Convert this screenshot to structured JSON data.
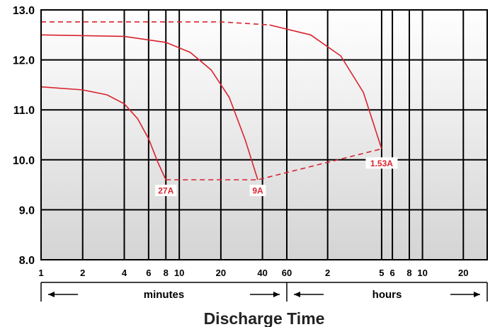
{
  "chart_data": {
    "type": "line",
    "title": "",
    "xlabel": "Discharge Time",
    "ylabel": "",
    "x_scale": "log",
    "x_unit": "minutes",
    "xlim": [
      1,
      1800
    ],
    "ylim": [
      8.0,
      13.0
    ],
    "grid": true,
    "y_ticks": [
      "8.0",
      "9.0",
      "10.0",
      "11.0",
      "12.0",
      "13.0"
    ],
    "x_ticks": [
      {
        "label": "1",
        "minutes": 1
      },
      {
        "label": "2",
        "minutes": 2
      },
      {
        "label": "4",
        "minutes": 4
      },
      {
        "label": "6",
        "minutes": 6
      },
      {
        "label": "8",
        "minutes": 8
      },
      {
        "label": "10",
        "minutes": 10
      },
      {
        "label": "20",
        "minutes": 20
      },
      {
        "label": "40",
        "minutes": 40
      },
      {
        "label": "60",
        "minutes": 60
      },
      {
        "label": "2",
        "minutes": 120
      },
      {
        "label": "5",
        "minutes": 300
      },
      {
        "label": "6",
        "minutes": 360
      },
      {
        "label": "8",
        "minutes": 480
      },
      {
        "label": "10",
        "minutes": 600
      },
      {
        "label": "20",
        "minutes": 1200
      }
    ],
    "ranges": [
      {
        "label": "minutes",
        "from_minutes": 1,
        "to_minutes": 60
      },
      {
        "label": "hours",
        "from_minutes": 60,
        "to_minutes": 1800
      }
    ],
    "series": [
      {
        "name": "27A",
        "x": [
          1,
          2,
          3,
          4,
          5,
          6,
          7,
          8
        ],
        "y": [
          11.46,
          11.4,
          11.3,
          11.12,
          10.82,
          10.42,
          9.95,
          9.6
        ]
      },
      {
        "name": "9A",
        "x": [
          1,
          4,
          8,
          12,
          17,
          23,
          30,
          37
        ],
        "y": [
          12.5,
          12.47,
          12.35,
          12.15,
          11.8,
          11.25,
          10.4,
          9.6
        ]
      },
      {
        "name": "1.53A",
        "x": [
          1,
          20,
          45,
          90,
          150,
          220,
          300
        ],
        "y": [
          12.76,
          12.76,
          12.7,
          12.5,
          12.08,
          11.35,
          10.22
        ]
      }
    ],
    "connector": {
      "style": "dashed",
      "x": [
        8,
        37,
        300
      ],
      "y": [
        9.6,
        9.6,
        10.22
      ]
    },
    "line_color": "#d9232e"
  }
}
